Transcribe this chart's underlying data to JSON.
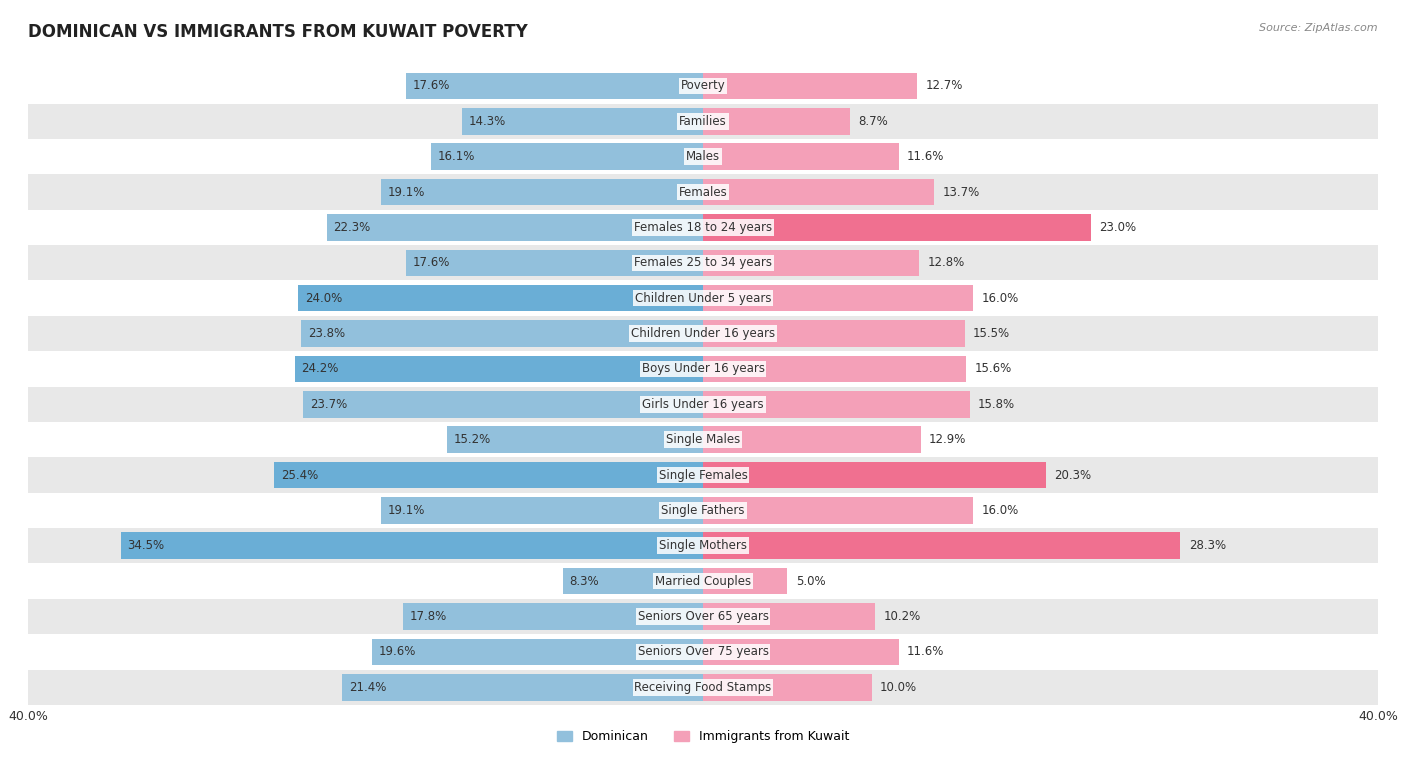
{
  "title": "DOMINICAN VS IMMIGRANTS FROM KUWAIT POVERTY",
  "source": "Source: ZipAtlas.com",
  "categories": [
    "Poverty",
    "Families",
    "Males",
    "Females",
    "Females 18 to 24 years",
    "Females 25 to 34 years",
    "Children Under 5 years",
    "Children Under 16 years",
    "Boys Under 16 years",
    "Girls Under 16 years",
    "Single Males",
    "Single Females",
    "Single Fathers",
    "Single Mothers",
    "Married Couples",
    "Seniors Over 65 years",
    "Seniors Over 75 years",
    "Receiving Food Stamps"
  ],
  "dominican": [
    17.6,
    14.3,
    16.1,
    19.1,
    22.3,
    17.6,
    24.0,
    23.8,
    24.2,
    23.7,
    15.2,
    25.4,
    19.1,
    34.5,
    8.3,
    17.8,
    19.6,
    21.4
  ],
  "kuwait": [
    12.7,
    8.7,
    11.6,
    13.7,
    23.0,
    12.8,
    16.0,
    15.5,
    15.6,
    15.8,
    12.9,
    20.3,
    16.0,
    28.3,
    5.0,
    10.2,
    11.6,
    10.0
  ],
  "dominican_highlight": [
    false,
    false,
    false,
    false,
    false,
    false,
    true,
    false,
    true,
    false,
    false,
    true,
    false,
    true,
    false,
    false,
    false,
    false
  ],
  "kuwait_highlight": [
    false,
    false,
    false,
    false,
    true,
    false,
    false,
    false,
    false,
    false,
    false,
    true,
    false,
    true,
    false,
    false,
    false,
    false
  ],
  "dominican_color": "#92c0dc",
  "dominican_highlight_color": "#6aaed6",
  "kuwait_color": "#f4a0b8",
  "kuwait_highlight_color": "#f07090",
  "axis_max": 40.0,
  "background_color": "#ffffff",
  "row_bg_light": "#ffffff",
  "row_bg_dark": "#e8e8e8",
  "label_fontsize": 8.5,
  "title_fontsize": 12,
  "bar_height": 0.75
}
